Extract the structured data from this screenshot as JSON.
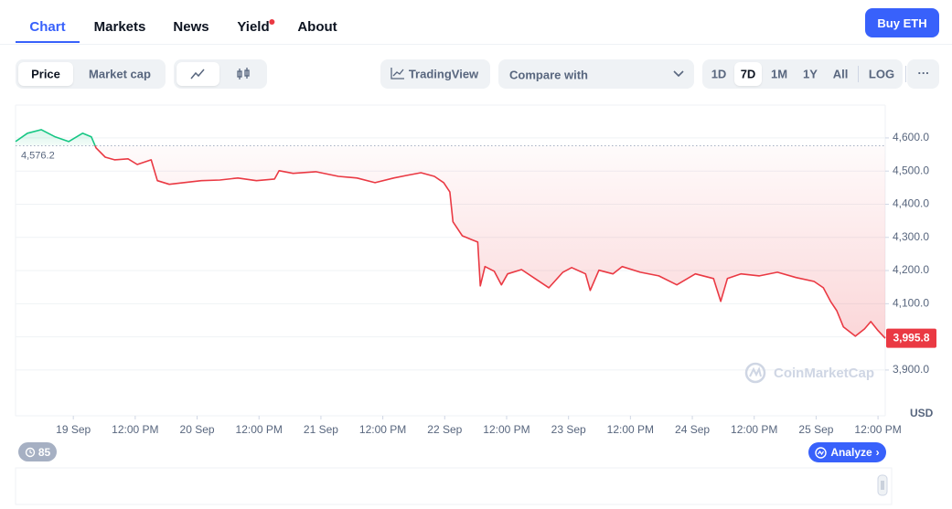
{
  "tabs": [
    "Chart",
    "Markets",
    "News",
    "Yield",
    "About"
  ],
  "active_tab": 0,
  "buy_button": "Buy ETH",
  "metric_toggle": [
    "Price",
    "Market cap"
  ],
  "tradingview": "TradingView",
  "compare": "Compare with",
  "ranges": [
    "1D",
    "7D",
    "1M",
    "1Y",
    "All"
  ],
  "active_range": 1,
  "log": "LOG",
  "more": "···",
  "history_badge": 85,
  "analyze": "Analyze",
  "chart_data": {
    "type": "line",
    "colors": {
      "up": "#16c784",
      "down": "#ea3943"
    },
    "x": [
      -11.2,
      -8.9,
      -6.2,
      -3.5,
      -0.9,
      1.8,
      3.5,
      4.4,
      6.2,
      8.0,
      10.6,
      12.4,
      15.1,
      16.3,
      18.6,
      21.3,
      24.8,
      28.4,
      31.9,
      35.5,
      39.0,
      39.9,
      42.6,
      47.0,
      51.4,
      55.0,
      58.5,
      62.1,
      64.7,
      67.4,
      70.0,
      71.8,
      73.0,
      73.6,
      75.4,
      77.1,
      78.4,
      78.9,
      79.8,
      81.6,
      83.0,
      84.2,
      86.9,
      89.5,
      92.2,
      94.9,
      96.6,
      99.3,
      100.2,
      101.9,
      104.6,
      106.4,
      109.9,
      113.5,
      117.0,
      120.6,
      124.1,
      125.5,
      126.8,
      129.4,
      133.0,
      136.5,
      140.1,
      143.6,
      145.4,
      146.8,
      148.0,
      149.3,
      151.6,
      153.4,
      154.6,
      156.0,
      157.4
    ],
    "values": [
      4589,
      4614,
      4625,
      4603,
      4589,
      4614,
      4603,
      4570,
      4542,
      4534,
      4537,
      4520,
      4534,
      4471,
      4460,
      4465,
      4471,
      4473,
      4479,
      4471,
      4476,
      4501,
      4493,
      4498,
      4484,
      4479,
      4465,
      4479,
      4487,
      4495,
      4484,
      4465,
      4437,
      4347,
      4305,
      4294,
      4286,
      4154,
      4212,
      4198,
      4157,
      4190,
      4203,
      4176,
      4148,
      4195,
      4209,
      4190,
      4140,
      4201,
      4190,
      4212,
      4195,
      4184,
      4157,
      4190,
      4176,
      4107,
      4176,
      4190,
      4184,
      4195,
      4179,
      4167,
      4148,
      4107,
      4079,
      4030,
      4002,
      4024,
      4046,
      4019,
      3995.8
    ],
    "xlim": [
      -11.2,
      157.4
    ],
    "xticks": [
      {
        "value": 0,
        "label": "19 Sep"
      },
      {
        "value": 12,
        "label": "12:00 PM"
      },
      {
        "value": 24,
        "label": "20 Sep"
      },
      {
        "value": 36,
        "label": "12:00 PM"
      },
      {
        "value": 48,
        "label": "21 Sep"
      },
      {
        "value": 60,
        "label": "12:00 PM"
      },
      {
        "value": 72,
        "label": "22 Sep"
      },
      {
        "value": 84,
        "label": "12:00 PM"
      },
      {
        "value": 96,
        "label": "23 Sep"
      },
      {
        "value": 108,
        "label": "12:00 PM"
      },
      {
        "value": 120,
        "label": "24 Sep"
      },
      {
        "value": 132,
        "label": "12:00 PM"
      },
      {
        "value": 144,
        "label": "25 Sep"
      },
      {
        "value": 156,
        "label": "12:00 PM"
      }
    ],
    "ylim": [
      3762,
      4699
    ],
    "yticks": [
      {
        "value": 3900,
        "label": "3,900.0"
      },
      {
        "value": 4000,
        "label": "4,000.0"
      },
      {
        "value": 4100,
        "label": "4,100.0"
      },
      {
        "value": 4200,
        "label": "4,200.0"
      },
      {
        "value": 4300,
        "label": "4,300.0"
      },
      {
        "value": 4400,
        "label": "4,400.0"
      },
      {
        "value": 4500,
        "label": "4,500.0"
      },
      {
        "value": 4600,
        "label": "4,600.0"
      }
    ],
    "baseline": {
      "value": 4576.2,
      "label": "4,576.2"
    },
    "last_price": {
      "value": 3995.8,
      "label": "3,995.8"
    },
    "y_unit": "USD",
    "watermark": "CoinMarketCap",
    "grid": true
  }
}
